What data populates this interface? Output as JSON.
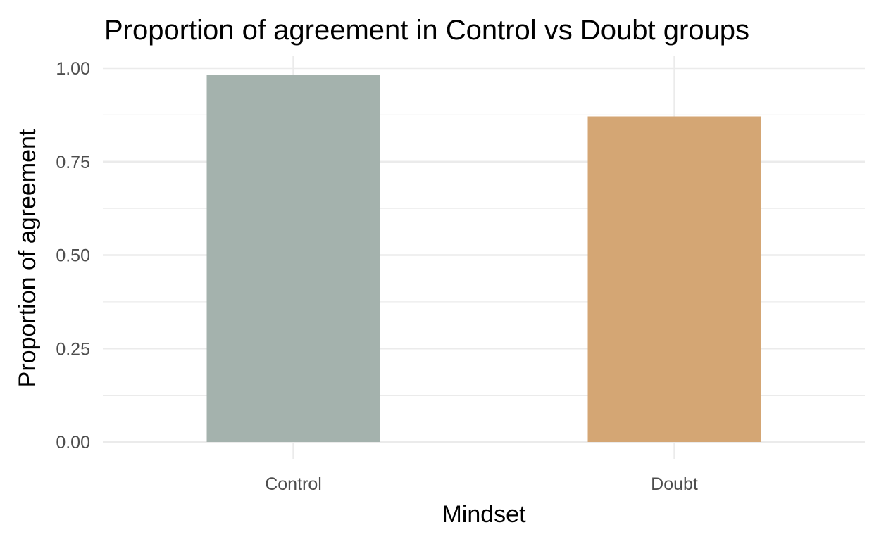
{
  "chart_data": {
    "type": "bar",
    "title": "Proportion of agreement in Control vs Doubt groups",
    "xlabel": "Mindset",
    "ylabel": "Proportion of agreement",
    "categories": [
      "Control",
      "Doubt"
    ],
    "values": [
      0.983,
      0.871
    ],
    "colors": [
      "#a1b0aa",
      "#d3a370"
    ],
    "ylim": [
      0,
      1.0
    ],
    "y_ticks": [
      "0.00",
      "0.25",
      "0.50",
      "0.75",
      "1.00"
    ],
    "grid": true,
    "legend": "none"
  }
}
